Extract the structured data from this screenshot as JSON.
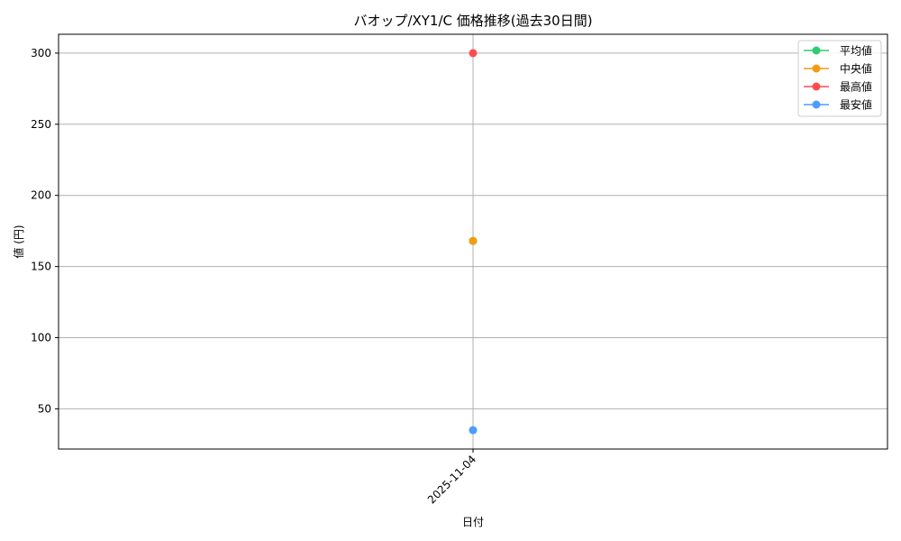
{
  "chart_data": {
    "type": "line",
    "title": "バオップ/XY1/C 価格推移(過去30日間)",
    "xlabel": "日付",
    "ylabel": "値 (円)",
    "categories": [
      "2025-11-04"
    ],
    "series": [
      {
        "name": "平均値",
        "values": [
          168
        ],
        "color": "#2ecc71"
      },
      {
        "name": "中央値",
        "values": [
          168
        ],
        "color": "#f39c12"
      },
      {
        "name": "最高値",
        "values": [
          300
        ],
        "color": "#ff4d4d"
      },
      {
        "name": "最安値",
        "values": [
          35
        ],
        "color": "#4d9cff"
      }
    ],
    "ylim": [
      21.75,
      313.25
    ],
    "yticks": [
      50,
      100,
      150,
      200,
      250,
      300
    ],
    "grid": true,
    "legend_position": "upper-right"
  }
}
